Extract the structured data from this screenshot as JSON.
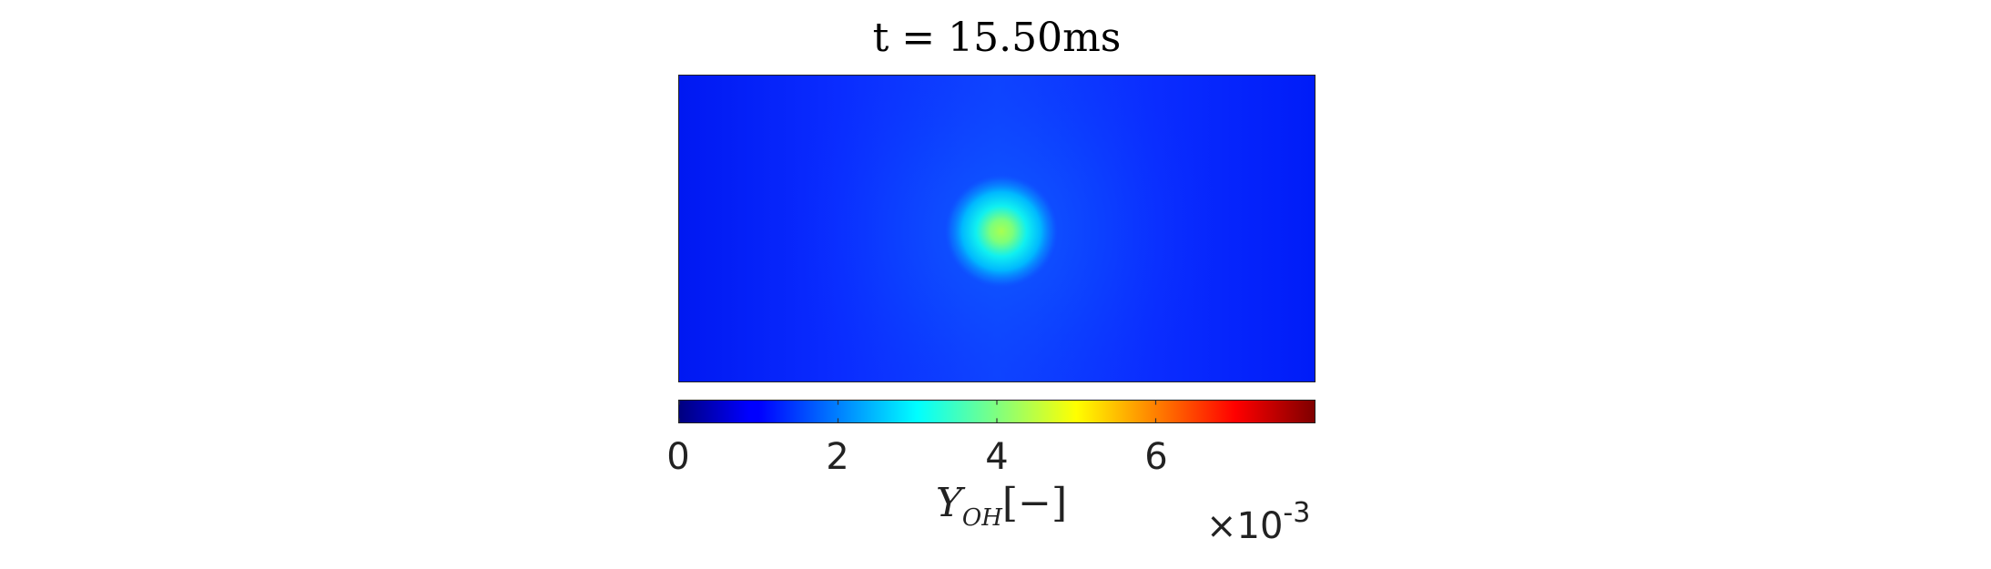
{
  "chart_data": {
    "type": "heatmap",
    "title": "t = 15.50ms",
    "colorbar": {
      "label_main": "Y",
      "label_sub": "OH",
      "label_unit": "[−]",
      "ticks": [
        "0",
        "2",
        "4",
        "6"
      ],
      "tick_values": [
        0,
        2,
        4,
        6
      ],
      "range": [
        0,
        8
      ],
      "multiplier": "×10",
      "exponent": "-3",
      "colormap": "jet"
    },
    "field": {
      "background_value": 1.1,
      "peak_value": 4.2,
      "peak_location": "center",
      "grid": false
    }
  }
}
